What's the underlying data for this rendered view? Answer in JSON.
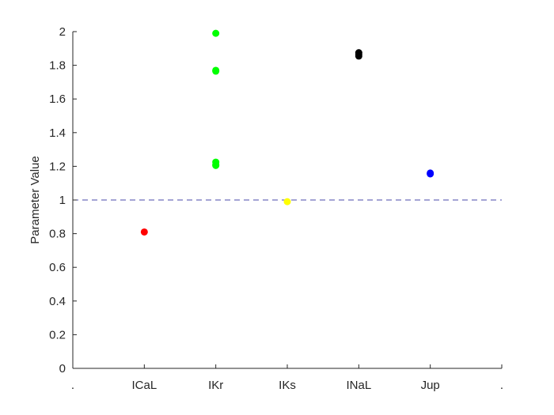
{
  "chart_data": {
    "type": "scatter",
    "title": "",
    "xlabel": "",
    "ylabel": "Parameter Value",
    "categories": [
      ".",
      "ICaL",
      "IKr",
      "IKs",
      "INaL",
      "Jup",
      "."
    ],
    "ylim": [
      0,
      2
    ],
    "yticks": [
      0,
      0.2,
      0.4,
      0.6,
      0.8,
      1,
      1.2,
      1.4,
      1.6,
      1.8,
      2
    ],
    "ytick_labels": [
      "0",
      "0.2",
      "0.4",
      "0.6",
      "0.8",
      "1",
      "1.2",
      "1.4",
      "1.6",
      "1.8",
      "2"
    ],
    "reference_line": {
      "y": 1,
      "style": "dashed",
      "color": "#4a4aa8"
    },
    "grid": false,
    "series": [
      {
        "name": "ICaL",
        "color": "#ff0000",
        "x": [
          1
        ],
        "y": [
          0.81
        ]
      },
      {
        "name": "IKr",
        "color": "#00ff00",
        "x": [
          2,
          2,
          2,
          2,
          2,
          2
        ],
        "y": [
          1.99,
          1.77,
          1.765,
          1.225,
          1.21,
          1.205
        ]
      },
      {
        "name": "IKs",
        "color": "#ffff00",
        "x": [
          3
        ],
        "y": [
          0.99
        ]
      },
      {
        "name": "INaL",
        "color": "#000000",
        "x": [
          4,
          4,
          4
        ],
        "y": [
          1.875,
          1.865,
          1.855
        ]
      },
      {
        "name": "Jup",
        "color": "#0000ff",
        "x": [
          5,
          5
        ],
        "y": [
          1.16,
          1.155
        ]
      }
    ]
  }
}
